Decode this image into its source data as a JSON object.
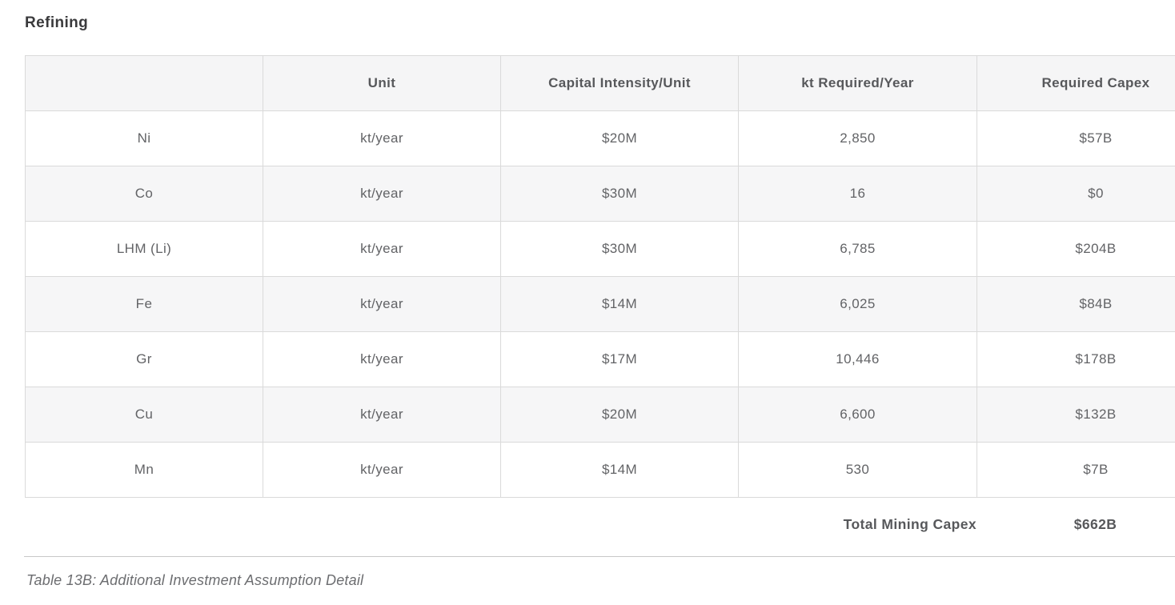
{
  "page": {
    "title": "Refining",
    "caption": "Table 13B: Additional Investment Assumption Detail"
  },
  "colors": {
    "title_text": "#3a3a3c",
    "header_bg": "#f5f5f6",
    "alt_row_bg": "#f6f6f7",
    "border": "#dadada",
    "header_text": "#57585b",
    "cell_text": "#626366",
    "caption_text": "#6c6d70",
    "bottom_rule": "#c7c7c7"
  },
  "table": {
    "headers": {
      "material": "",
      "unit": "Unit",
      "intensity": "Capital Intensity/Unit",
      "kt_required": "kt Required/Year",
      "capex": "Required Capex"
    },
    "rows": [
      {
        "material": "Ni",
        "unit": "kt/year",
        "intensity": "$20M",
        "kt_required": "2,850",
        "capex": "$57B"
      },
      {
        "material": "Co",
        "unit": "kt/year",
        "intensity": "$30M",
        "kt_required": "16",
        "capex": "$0"
      },
      {
        "material": "LHM (Li)",
        "unit": "kt/year",
        "intensity": "$30M",
        "kt_required": "6,785",
        "capex": "$204B"
      },
      {
        "material": "Fe",
        "unit": "kt/year",
        "intensity": "$14M",
        "kt_required": "6,025",
        "capex": "$84B"
      },
      {
        "material": "Gr",
        "unit": "kt/year",
        "intensity": "$17M",
        "kt_required": "10,446",
        "capex": "$178B"
      },
      {
        "material": "Cu",
        "unit": "kt/year",
        "intensity": "$20M",
        "kt_required": "6,600",
        "capex": "$132B"
      },
      {
        "material": "Mn",
        "unit": "kt/year",
        "intensity": "$14M",
        "kt_required": "530",
        "capex": "$7B"
      }
    ],
    "total": {
      "label": "Total Mining Capex",
      "value": "$662B"
    }
  }
}
